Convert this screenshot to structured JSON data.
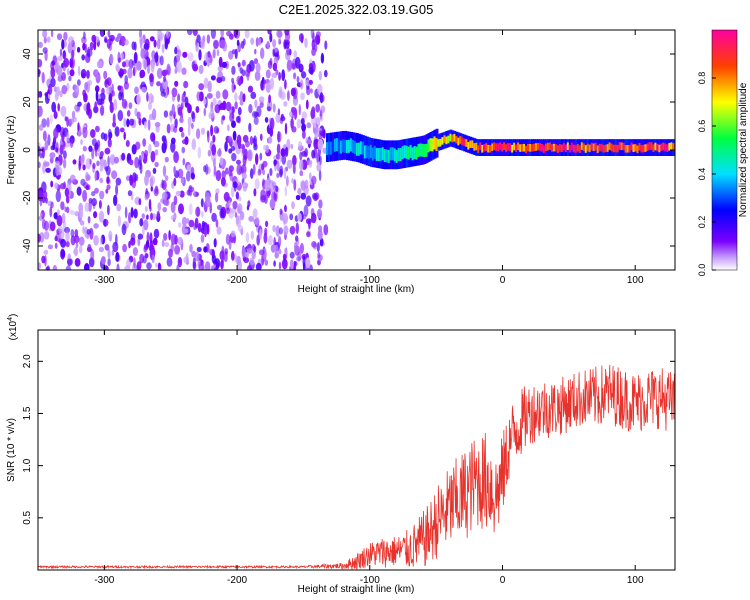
{
  "title": "C2E1.2025.322.03.19.G05",
  "chart_data": [
    {
      "type": "heatmap",
      "title": "C2E1.2025.322.03.19.G05",
      "xlabel": "Height of straight line (km)",
      "ylabel": "Frequency (Hz)",
      "xlim": [
        -350,
        130
      ],
      "ylim": [
        -50,
        50
      ],
      "x_ticks": [
        -300,
        -200,
        -100,
        0,
        100
      ],
      "y_ticks": [
        -40,
        -20,
        0,
        20,
        40
      ],
      "x_tick_labels": [
        "-300",
        "-200",
        "-100",
        "0",
        "100"
      ],
      "y_tick_labels": [
        "-40",
        "-20",
        "0",
        "20",
        "40"
      ],
      "noise_region_x": [
        -350,
        -133
      ],
      "ridge": {
        "name": "signal ridge",
        "x": [
          -133,
          -120,
          -110,
          -100,
          -90,
          -80,
          -70,
          -60,
          -50,
          -40,
          -30,
          -20,
          -10,
          0,
          10,
          20,
          30,
          40,
          50,
          60,
          70,
          80,
          90,
          100,
          110,
          120,
          130
        ],
        "freq": [
          1,
          2,
          1,
          -1,
          -2,
          -2,
          -1,
          0,
          3,
          5,
          3,
          1,
          1,
          1,
          1,
          1,
          1,
          1,
          1,
          1,
          1,
          1,
          1,
          1,
          1,
          1,
          1
        ],
        "amplitude": [
          0.35,
          0.4,
          0.45,
          0.4,
          0.45,
          0.5,
          0.55,
          0.6,
          0.75,
          0.85,
          0.9,
          0.95,
          0.95,
          0.95,
          0.95,
          0.95,
          0.95,
          0.95,
          0.95,
          0.95,
          0.95,
          0.95,
          0.95,
          0.95,
          0.95,
          0.95,
          0.95
        ]
      },
      "colorbar": {
        "label": "Normalized spectral amplitude",
        "range": [
          0,
          1
        ],
        "ticks": [
          0.0,
          0.2,
          0.4,
          0.6,
          0.8
        ],
        "tick_labels": [
          "0.0",
          "0.2",
          "0.4",
          "0.6",
          "0.8"
        ]
      }
    },
    {
      "type": "line",
      "xlabel": "Height of straight line (km)",
      "ylabel": "SNR (10 * v/v)",
      "y_scale_label": "(x10",
      "y_scale_exp": "4",
      "xlim": [
        -350,
        130
      ],
      "ylim": [
        0,
        2.3
      ],
      "x_ticks": [
        -300,
        -200,
        -100,
        0,
        100
      ],
      "y_ticks": [
        0.5,
        1.0,
        1.5,
        2.0
      ],
      "x_tick_labels": [
        "-300",
        "-200",
        "-100",
        "0",
        "100"
      ],
      "y_tick_labels": [
        "0.5",
        "1.0",
        "1.5",
        "2.0"
      ],
      "series": [
        {
          "name": "SNR",
          "color": "#e8322c",
          "x": [
            -350,
            -300,
            -250,
            -200,
            -150,
            -120,
            -110,
            -100,
            -90,
            -80,
            -70,
            -60,
            -55,
            -50,
            -40,
            -30,
            -20,
            -10,
            -5,
            0,
            5,
            10,
            20,
            30,
            40,
            50,
            60,
            70,
            80,
            90,
            100,
            110,
            120,
            130
          ],
          "mean": [
            0.03,
            0.03,
            0.03,
            0.03,
            0.03,
            0.04,
            0.08,
            0.15,
            0.17,
            0.18,
            0.2,
            0.28,
            0.35,
            0.45,
            0.6,
            0.7,
            0.85,
            0.85,
            0.7,
            0.9,
            1.2,
            1.35,
            1.5,
            1.55,
            1.55,
            1.6,
            1.65,
            1.65,
            1.7,
            1.65,
            1.6,
            1.65,
            1.65,
            1.6
          ],
          "spread": [
            0.01,
            0.01,
            0.01,
            0.01,
            0.01,
            0.03,
            0.08,
            0.12,
            0.15,
            0.15,
            0.2,
            0.28,
            0.3,
            0.35,
            0.4,
            0.45,
            0.45,
            0.5,
            0.45,
            0.4,
            0.35,
            0.35,
            0.3,
            0.3,
            0.28,
            0.28,
            0.28,
            0.3,
            0.3,
            0.3,
            0.3,
            0.3,
            0.3,
            0.3
          ]
        }
      ]
    }
  ]
}
